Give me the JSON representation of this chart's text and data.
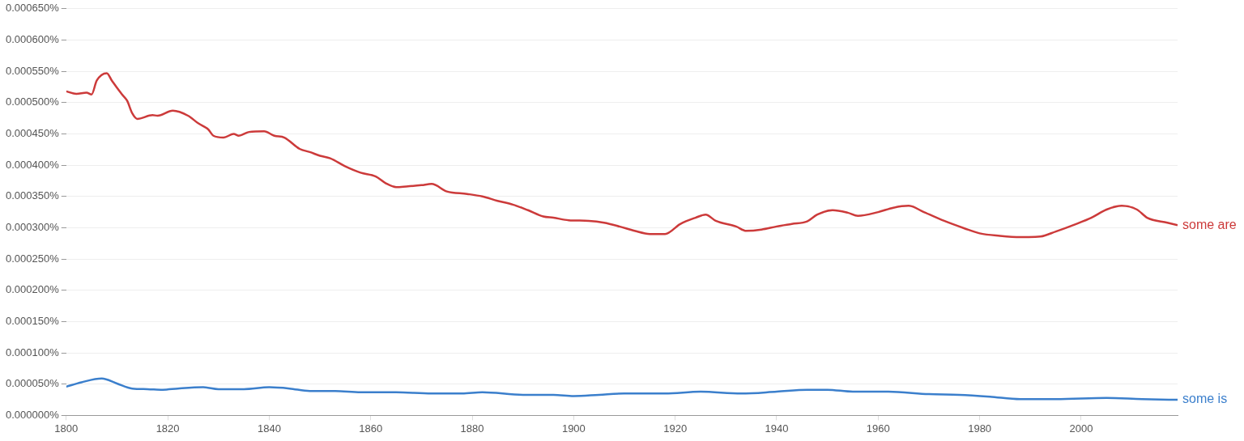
{
  "chart_data": {
    "type": "line",
    "x": [
      1800,
      1802,
      1804,
      1805,
      1806,
      1808,
      1809,
      1811,
      1812,
      1813,
      1814,
      1817,
      1818,
      1821,
      1824,
      1826,
      1828,
      1829,
      1831,
      1833,
      1834,
      1836,
      1839,
      1841,
      1843,
      1846,
      1848,
      1850,
      1852,
      1855,
      1858,
      1861,
      1863,
      1865,
      1867,
      1870,
      1872,
      1875,
      1879,
      1882,
      1885,
      1888,
      1891,
      1894,
      1896,
      1899,
      1903,
      1906,
      1909,
      1912,
      1915,
      1918,
      1921,
      1924,
      1926,
      1928,
      1932,
      1934,
      1937,
      1940,
      1943,
      1946,
      1948,
      1951,
      1954,
      1956,
      1960,
      1963,
      1966,
      1969,
      1973,
      1977,
      1980,
      1984,
      1988,
      1992,
      1995,
      1999,
      2002,
      2005,
      2008,
      2011,
      2013,
      2017,
      2019
    ],
    "series": [
      {
        "name": "some are",
        "color": "#cc3a3a",
        "values": [
          0.000518,
          0.000514,
          0.000516,
          0.000513,
          0.000535,
          0.000547,
          0.000535,
          0.000513,
          0.000503,
          0.000483,
          0.000474,
          0.00048,
          0.000479,
          0.000487,
          0.000479,
          0.000467,
          0.000457,
          0.000447,
          0.000444,
          0.00045,
          0.000447,
          0.000453,
          0.000454,
          0.000447,
          0.000444,
          0.000426,
          0.000421,
          0.000415,
          0.000411,
          0.000398,
          0.000388,
          0.000382,
          0.000371,
          0.000365,
          0.000366,
          0.000368,
          0.00037,
          0.000358,
          0.000354,
          0.00035,
          0.000343,
          0.000337,
          0.000328,
          0.000318,
          0.000316,
          0.000312,
          0.000311,
          0.000308,
          0.000302,
          0.000295,
          0.00029,
          0.00029,
          0.000306,
          0.000316,
          0.000321,
          0.000311,
          0.000302,
          0.000295,
          0.000297,
          0.000302,
          0.000306,
          0.00031,
          0.000321,
          0.000328,
          0.000324,
          0.000319,
          0.000325,
          0.000332,
          0.000335,
          0.000325,
          0.000311,
          0.000299,
          0.000291,
          0.000287,
          0.000285,
          0.000286,
          0.000294,
          0.000306,
          0.000316,
          0.000329,
          0.000335,
          0.000329,
          0.000316,
          0.000308,
          0.000304
        ]
      },
      {
        "name": "some is",
        "color": "#3b7fcc",
        "x": [
          1800,
          1803,
          1807,
          1810,
          1813,
          1816,
          1819,
          1822,
          1827,
          1830,
          1835,
          1840,
          1844,
          1848,
          1853,
          1858,
          1865,
          1872,
          1878,
          1882,
          1890,
          1896,
          1900,
          1905,
          1910,
          1918,
          1925,
          1933,
          1940,
          1946,
          1950,
          1955,
          1962,
          1970,
          1976,
          1982,
          1988,
          1995,
          2005,
          2012,
          2019
        ],
        "values": [
          4.6e-05,
          5.3e-05,
          5.9e-05,
          5.1e-05,
          4.3e-05,
          4.2e-05,
          4.1e-05,
          4.3e-05,
          4.5e-05,
          4.2e-05,
          4.2e-05,
          4.5e-05,
          4.3e-05,
          3.9e-05,
          3.9e-05,
          3.7e-05,
          3.7e-05,
          3.5e-05,
          3.5e-05,
          3.7e-05,
          3.3e-05,
          3.3e-05,
          3.1e-05,
          3.3e-05,
          3.5e-05,
          3.5e-05,
          3.8e-05,
          3.5e-05,
          3.8e-05,
          4.1e-05,
          4.1e-05,
          3.8e-05,
          3.8e-05,
          3.4e-05,
          3.3e-05,
          3e-05,
          2.6e-05,
          2.6e-05,
          2.8e-05,
          2.6e-05,
          2.5e-05
        ]
      }
    ],
    "xlim": [
      1800,
      2019
    ],
    "xticks": [
      1800,
      1820,
      1840,
      1860,
      1880,
      1900,
      1920,
      1940,
      1960,
      1980,
      2000
    ],
    "ylim": [
      0,
      0.00065
    ],
    "yticks": [
      {
        "value": 0,
        "label": "0.000000%"
      },
      {
        "value": 5e-05,
        "label": "0.000050%"
      },
      {
        "value": 0.0001,
        "label": "0.000100%"
      },
      {
        "value": 0.00015,
        "label": "0.000150%"
      },
      {
        "value": 0.0002,
        "label": "0.000200%"
      },
      {
        "value": 0.00025,
        "label": "0.000250%"
      },
      {
        "value": 0.0003,
        "label": "0.000300%"
      },
      {
        "value": 0.00035,
        "label": "0.000350%"
      },
      {
        "value": 0.0004,
        "label": "0.000400%"
      },
      {
        "value": 0.00045,
        "label": "0.000450%"
      },
      {
        "value": 0.0005,
        "label": "0.000500%"
      },
      {
        "value": 0.00055,
        "label": "0.000550%"
      },
      {
        "value": 0.0006,
        "label": "0.000600%"
      },
      {
        "value": 0.00065,
        "label": "0.000650%"
      }
    ],
    "grid": "y",
    "legend": false,
    "marker": "none",
    "line_style": "solid"
  }
}
